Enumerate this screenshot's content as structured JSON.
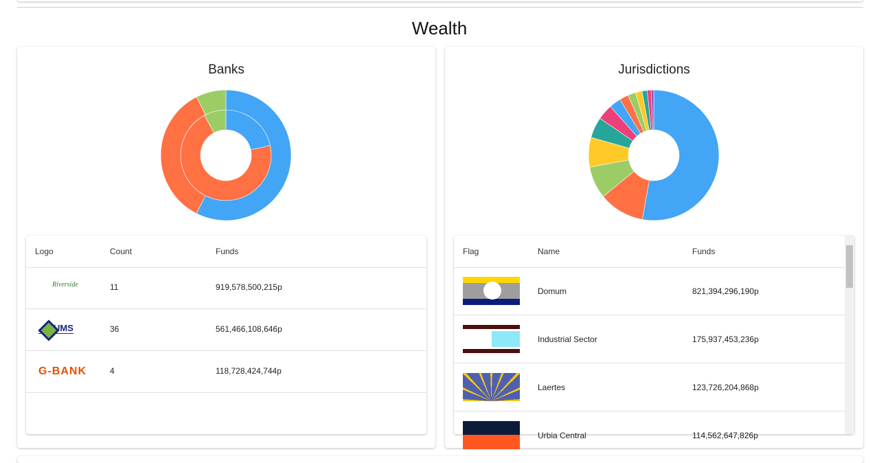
{
  "page_title": "Wealth",
  "chart_data": [
    {
      "type": "donut",
      "title": "Banks",
      "categories": [
        "Riverside",
        "UMS",
        "G-BANK"
      ],
      "colors": [
        "#42a5f5",
        "#ff7043",
        "#9ccc65"
      ],
      "series": [
        {
          "name": "Count",
          "values": [
            11,
            36,
            4
          ]
        },
        {
          "name": "Funds",
          "values": [
            919578500215,
            561466108646,
            118728424744
          ],
          "value_labels": [
            "919,578,500,215p",
            "561,466,108,646p",
            "118,728,424,744p"
          ]
        }
      ]
    },
    {
      "type": "donut",
      "title": "Jurisdictions",
      "categories": [
        "Domum",
        "Industrial Sector",
        "Laertes",
        "Urbia Central",
        null,
        null,
        null,
        null,
        null,
        null,
        null,
        null,
        null
      ],
      "colors": [
        "#42a5f5",
        "#ff7043",
        "#9ccc65",
        "#ffca28",
        "#26a69a",
        "#ec407a",
        "#42a5f5",
        "#ff7043",
        "#9ccc65",
        "#ffca28",
        "#26a69a",
        "#ec407a",
        "#ab47bc"
      ],
      "series": [
        {
          "name": "Funds",
          "values": [
            821394296190,
            175937453236,
            123726204868,
            114562647826,
            80000000000,
            60000000000,
            45000000000,
            35000000000,
            30000000000,
            25000000000,
            20000000000,
            15000000000,
            10000000000
          ],
          "value_labels": [
            "821,394,296,190p",
            "175,937,453,236p",
            "123,726,204,868p",
            "114,562,647,826p",
            null,
            null,
            null,
            null,
            null,
            null,
            null,
            null,
            null
          ]
        }
      ]
    }
  ],
  "tables": [
    {
      "columns": [
        "Logo",
        "Count",
        "Funds"
      ]
    },
    {
      "columns": [
        "Flag",
        "Name",
        "Funds"
      ]
    }
  ]
}
